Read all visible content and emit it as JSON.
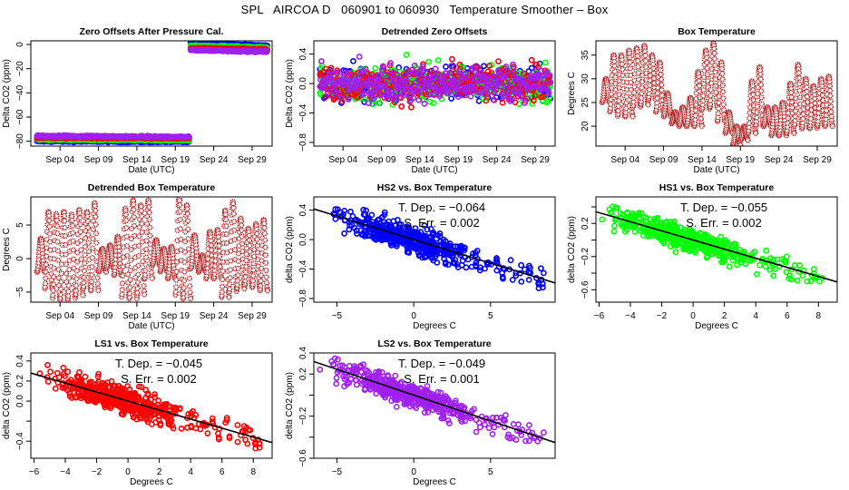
{
  "title": "SPL   AIRCOA D   060901 to 060930   Temperature Smoother – Box",
  "chart_data": [
    {
      "id": "zero-offsets",
      "type": "scatter",
      "title": "Zero Offsets After Pressure Cal.",
      "xlabel": "Date (UTC)",
      "ylabel": "Delta CO2 (ppm)",
      "xlim": [
        0.2,
        31.6
      ],
      "ylim": [
        -84,
        3
      ],
      "xticks": [
        {
          "v": 4,
          "label": "Sep 04"
        },
        {
          "v": 9,
          "label": "Sep 09"
        },
        {
          "v": 14,
          "label": "Sep 14"
        },
        {
          "v": 19,
          "label": "Sep 19"
        },
        {
          "v": 24,
          "label": "Sep 24"
        },
        {
          "v": 29,
          "label": "Sep 29"
        }
      ],
      "yticks": [
        {
          "v": 0,
          "label": "0"
        },
        {
          "v": -20,
          "label": "−20"
        },
        {
          "v": -40,
          "label": "−40"
        },
        {
          "v": -60,
          "label": "−60"
        },
        {
          "v": -80,
          "label": "−80"
        }
      ],
      "series": [
        {
          "name": "HS2",
          "color": "#0000ff",
          "segments": [
            {
              "x": [
                1,
                20.8
              ],
              "y": [
                -80,
                -80.5
              ]
            },
            {
              "x": [
                21,
                31
              ],
              "y": [
                1,
                -1
              ]
            }
          ]
        },
        {
          "name": "HS1",
          "color": "#00ff00",
          "segments": [
            {
              "x": [
                1,
                20.8
              ],
              "y": [
                -78.5,
                -79
              ]
            },
            {
              "x": [
                21,
                31
              ],
              "y": [
                -1,
                -2.5
              ]
            }
          ]
        },
        {
          "name": "LS1",
          "color": "#ff0000",
          "segments": [
            {
              "x": [
                1,
                20.8
              ],
              "y": [
                -77,
                -77.5
              ]
            },
            {
              "x": [
                21,
                31
              ],
              "y": [
                -3,
                -4
              ]
            }
          ]
        },
        {
          "name": "LS2",
          "color": "#a020f0",
          "segments": [
            {
              "x": [
                1,
                20.8
              ],
              "y": [
                -75.5,
                -76.5
              ]
            },
            {
              "x": [
                21,
                31
              ],
              "y": [
                -4.5,
                -6
              ]
            }
          ]
        }
      ]
    },
    {
      "id": "detrended-zero-offsets",
      "type": "scatter",
      "title": "Detrended Zero Offsets",
      "xlabel": "Date (UTC)",
      "ylabel": "Delta CO2 (ppm)",
      "xlim": [
        0.2,
        31.6
      ],
      "ylim": [
        -0.85,
        0.58
      ],
      "xticks": [
        {
          "v": 4,
          "label": "Sep 04"
        },
        {
          "v": 9,
          "label": "Sep 09"
        },
        {
          "v": 14,
          "label": "Sep 14"
        },
        {
          "v": 19,
          "label": "Sep 19"
        },
        {
          "v": 24,
          "label": "Sep 24"
        },
        {
          "v": 29,
          "label": "Sep 29"
        }
      ],
      "yticks": [
        {
          "v": 0.4,
          "label": "0.4"
        },
        {
          "v": 0.0,
          "label": "0.0"
        },
        {
          "v": -0.4,
          "label": "−0.4"
        },
        {
          "v": -0.8,
          "label": "−0.8"
        }
      ],
      "series": [
        {
          "name": "HS2",
          "color": "#0000ff",
          "range": [
            -0.8,
            0.55
          ]
        },
        {
          "name": "HS1",
          "color": "#00ff00",
          "range": [
            -0.7,
            0.5
          ]
        },
        {
          "name": "LS1",
          "color": "#ff0000",
          "range": [
            -0.55,
            0.45
          ]
        },
        {
          "name": "LS2",
          "color": "#a020f0",
          "range": [
            -0.5,
            0.4
          ]
        }
      ]
    },
    {
      "id": "box-temperature",
      "type": "scatter",
      "title": "Box Temperature",
      "xlabel": "Date (UTC)",
      "ylabel": "Degrees C",
      "xlim": [
        0.2,
        31.6
      ],
      "ylim": [
        15.8,
        38
      ],
      "xticks": [
        {
          "v": 4,
          "label": "Sep 04"
        },
        {
          "v": 9,
          "label": "Sep 09"
        },
        {
          "v": 14,
          "label": "Sep 14"
        },
        {
          "v": 19,
          "label": "Sep 19"
        },
        {
          "v": 24,
          "label": "Sep 24"
        },
        {
          "v": 29,
          "label": "Sep 29"
        }
      ],
      "yticks": [
        {
          "v": 35,
          "label": "35"
        },
        {
          "v": 30,
          "label": "30"
        },
        {
          "v": 25,
          "label": "25"
        },
        {
          "v": 20,
          "label": "20"
        }
      ],
      "series": [
        {
          "name": "Box",
          "color": "#b22222",
          "daily_max": [
            30,
            35,
            35,
            36,
            36.5,
            37,
            35,
            33.5,
            27,
            23,
            24,
            26,
            31.5,
            36,
            37.5,
            33.5,
            23,
            20,
            20,
            29.5,
            32.5,
            24,
            24,
            25,
            29,
            33,
            30,
            28.5,
            30,
            30.5,
            33
          ],
          "daily_min": [
            25,
            23,
            22,
            22,
            24,
            24.5,
            25.5,
            23,
            22,
            20.5,
            20,
            20,
            20,
            23.5,
            24,
            21,
            18.5,
            16,
            17,
            18.5,
            20,
            20,
            18,
            18,
            18.5,
            20,
            19.5,
            19.5,
            20,
            20,
            21
          ]
        }
      ]
    },
    {
      "id": "detrended-box-temperature",
      "type": "scatter",
      "title": "Detrended Box Temperature",
      "xlabel": "Date (UTC)",
      "ylabel": "Degrees C",
      "xlim": [
        0.2,
        31.6
      ],
      "ylim": [
        -6.5,
        9.2
      ],
      "xticks": [
        {
          "v": 4,
          "label": "Sep 04"
        },
        {
          "v": 9,
          "label": "Sep 09"
        },
        {
          "v": 14,
          "label": "Sep 14"
        },
        {
          "v": 19,
          "label": "Sep 19"
        },
        {
          "v": 24,
          "label": "Sep 24"
        },
        {
          "v": 29,
          "label": "Sep 29"
        }
      ],
      "yticks": [
        {
          "v": 5,
          "label": "5"
        },
        {
          "v": 0,
          "label": "0"
        },
        {
          "v": -5,
          "label": "−5"
        }
      ],
      "series": [
        {
          "name": "Box",
          "color": "#b22222",
          "daily_max": [
            3,
            7,
            6.7,
            7,
            6.6,
            7.3,
            7,
            8.3,
            1.5,
            2,
            3.3,
            7.5,
            8.7,
            8,
            8.7,
            2.8,
            1.5,
            1.8,
            9,
            8,
            3.5,
            0.5,
            4,
            4.3,
            7.2,
            8.5,
            6,
            4.5,
            5.2,
            5.8,
            7
          ],
          "daily_min": [
            -2,
            -4.5,
            -6,
            -6.2,
            -6,
            -5.5,
            -4.5,
            -4.8,
            -2,
            -1.5,
            -2.5,
            -5.8,
            -6,
            -5.5,
            -3,
            -1,
            -2,
            -3,
            -5.5,
            -6,
            -1.5,
            -2,
            -3,
            -3,
            -5.8,
            -5,
            -4.5,
            -4,
            -4.3,
            -4.8,
            -5
          ]
        }
      ]
    },
    {
      "id": "hs2-vs-box",
      "type": "scatter",
      "title": "HS2 vs. Box Temperature",
      "xlabel": "Degrees C",
      "ylabel": "delta CO2 (ppm)",
      "xlim": [
        -6.5,
        9.2
      ],
      "ylim": [
        -0.85,
        0.58
      ],
      "xticks": [
        {
          "v": -5,
          "label": "−5"
        },
        {
          "v": 0,
          "label": "0"
        },
        {
          "v": 5,
          "label": "5"
        }
      ],
      "yticks": [
        {
          "v": 0.4,
          "label": "0.4"
        },
        {
          "v": 0.0,
          "label": "0.0"
        },
        {
          "v": -0.4,
          "label": "−0.4"
        },
        {
          "v": -0.8,
          "label": "−0.8"
        }
      ],
      "series": [
        {
          "name": "HS2",
          "color": "#0000ff",
          "slope": -0.064,
          "scatter": 0.12
        }
      ],
      "fit": {
        "slope": -0.064,
        "intercept": 0.0
      },
      "annotations": [
        "T. Dep. =  −0.064",
        "S. Err. =  0.002"
      ]
    },
    {
      "id": "hs1-vs-box",
      "type": "scatter",
      "title": "HS1 vs. Box Temperature",
      "xlabel": "Degrees C",
      "ylabel": "delta CO2 (ppm)",
      "xlim": [
        -6.2,
        9.2
      ],
      "ylim": [
        -0.75,
        0.52
      ],
      "xticks": [
        {
          "v": -6,
          "label": "−6"
        },
        {
          "v": -4,
          "label": "−4"
        },
        {
          "v": -2,
          "label": "−2"
        },
        {
          "v": 0,
          "label": "0"
        },
        {
          "v": 2,
          "label": "2"
        },
        {
          "v": 4,
          "label": "4"
        },
        {
          "v": 6,
          "label": "6"
        },
        {
          "v": 8,
          "label": "8"
        }
      ],
      "yticks": [
        {
          "v": 0.4,
          "label": ""
        },
        {
          "v": 0.2,
          "label": "0.2"
        },
        {
          "v": 0.0,
          "label": ""
        },
        {
          "v": -0.2,
          "label": "−0.2"
        },
        {
          "v": -0.4,
          "label": ""
        },
        {
          "v": -0.6,
          "label": "−0.6"
        }
      ],
      "series": [
        {
          "name": "HS1",
          "color": "#00ff00",
          "slope": -0.055,
          "scatter": 0.1
        }
      ],
      "fit": {
        "slope": -0.055,
        "intercept": 0.0
      },
      "annotations": [
        "T. Dep. =  −0.055",
        "S. Err. =  0.002"
      ]
    },
    {
      "id": "ls1-vs-box",
      "type": "scatter",
      "title": "LS1 vs. Box Temperature",
      "xlabel": "Degrees C",
      "ylabel": "delta CO2 (ppm)",
      "xlim": [
        -6.2,
        9.2
      ],
      "ylim": [
        -0.57,
        0.48
      ],
      "xticks": [
        {
          "v": -6,
          "label": "−6"
        },
        {
          "v": -4,
          "label": "−4"
        },
        {
          "v": -2,
          "label": "−2"
        },
        {
          "v": 0,
          "label": "0"
        },
        {
          "v": 2,
          "label": "2"
        },
        {
          "v": 4,
          "label": "4"
        },
        {
          "v": 6,
          "label": "6"
        },
        {
          "v": 8,
          "label": "8"
        }
      ],
      "yticks": [
        {
          "v": 0.4,
          "label": "0.4"
        },
        {
          "v": 0.2,
          "label": "0.2"
        },
        {
          "v": 0.0,
          "label": "0.0"
        },
        {
          "v": -0.2,
          "label": ""
        },
        {
          "v": -0.4,
          "label": "−0.4"
        }
      ],
      "series": [
        {
          "name": "LS1",
          "color": "#ff0000",
          "slope": -0.045,
          "scatter": 0.09
        }
      ],
      "fit": {
        "slope": -0.045,
        "intercept": 0.0
      },
      "annotations": [
        "T. Dep. =  −0.045",
        "S. Err. =  0.002"
      ]
    },
    {
      "id": "ls2-vs-box",
      "type": "scatter",
      "title": "LS2 vs. Box Temperature",
      "xlabel": "Degrees C",
      "ylabel": "delta CO2 (ppm)",
      "xlim": [
        -6.5,
        9.2
      ],
      "ylim": [
        -0.6,
        0.4
      ],
      "xticks": [
        {
          "v": -5,
          "label": "−5"
        },
        {
          "v": 0,
          "label": "0"
        },
        {
          "v": 5,
          "label": "5"
        }
      ],
      "yticks": [
        {
          "v": 0.4,
          "label": "0.4"
        },
        {
          "v": 0.2,
          "label": "0.2"
        },
        {
          "v": 0.0,
          "label": ""
        },
        {
          "v": -0.2,
          "label": "−0.2"
        },
        {
          "v": -0.4,
          "label": ""
        },
        {
          "v": -0.6,
          "label": "−0.6"
        }
      ],
      "series": [
        {
          "name": "LS2",
          "color": "#a020f0",
          "slope": -0.049,
          "scatter": 0.08
        }
      ],
      "fit": {
        "slope": -0.049,
        "intercept": 0.0
      },
      "annotations": [
        "T. Dep. =  −0.049",
        "S. Err. =  0.001"
      ]
    }
  ]
}
